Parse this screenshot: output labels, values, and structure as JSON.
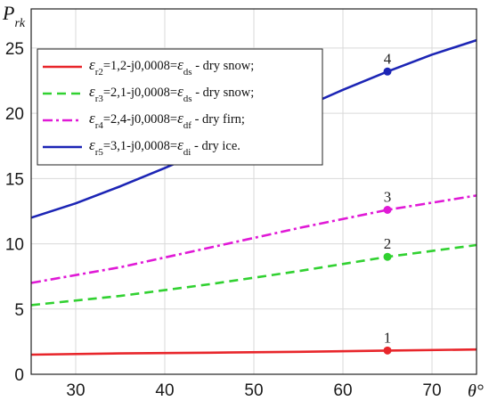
{
  "chart_data": {
    "type": "line",
    "xlabel": "θ°",
    "ylabel": "P",
    "ylabel_sub": "rk",
    "xlim": [
      25,
      75
    ],
    "ylim": [
      0,
      28
    ],
    "xticks": [
      30,
      40,
      50,
      60,
      70
    ],
    "yticks": [
      0,
      5,
      10,
      15,
      20,
      25
    ],
    "grid": true,
    "legend_position": "top-left",
    "series": [
      {
        "name": "εr2=1,2-j0,0008= εds - dry snow;",
        "legend": {
          "eps_sub": "r2",
          "value": "=1,2-j0,0008=",
          "eq_sub": "ds",
          "desc": " - dry snow;"
        },
        "color": "#e8262b",
        "dash": "solid",
        "marker_label": "1",
        "marker_x": 65,
        "x": [
          25,
          35,
          45,
          55,
          65,
          75
        ],
        "y": [
          1.5,
          1.6,
          1.65,
          1.72,
          1.82,
          1.9
        ]
      },
      {
        "name": "εr3=2,1-j0,0008= εds - dry snow;",
        "legend": {
          "eps_sub": "r3",
          "value": "=2,1-j0,0008=",
          "eq_sub": "ds",
          "desc": " - dry snow;"
        },
        "color": "#31d131",
        "dash": "dashed",
        "marker_label": "2",
        "marker_x": 65,
        "x": [
          25,
          35,
          45,
          55,
          65,
          75
        ],
        "y": [
          5.3,
          6.0,
          6.9,
          7.9,
          9.0,
          9.9
        ]
      },
      {
        "name": "εr4=2,4-j0,0008= εdf - dry firn;",
        "legend": {
          "eps_sub": "r4",
          "value": "=2,4-j0,0008=",
          "eq_sub": "df",
          "desc": " - dry firn;"
        },
        "color": "#e019d6",
        "dash": "dashdot",
        "marker_label": "3",
        "marker_x": 65,
        "x": [
          25,
          35,
          45,
          55,
          65,
          75
        ],
        "y": [
          7.0,
          8.2,
          9.7,
          11.2,
          12.6,
          13.7
        ]
      },
      {
        "name": "εr5=3,1-j0,0008= εdi - dry ice.",
        "legend": {
          "eps_sub": "r5",
          "value": "=3,1-j0,0008=",
          "eq_sub": "di",
          "desc": " - dry ice."
        },
        "color": "#1c25b5",
        "dash": "solid",
        "marker_label": "4",
        "marker_x": 65,
        "x": [
          25,
          30,
          35,
          40,
          45,
          50,
          55,
          60,
          65,
          70,
          75
        ],
        "y": [
          12.0,
          13.1,
          14.4,
          15.8,
          17.3,
          18.8,
          20.3,
          21.8,
          23.2,
          24.5,
          25.6
        ]
      }
    ]
  }
}
